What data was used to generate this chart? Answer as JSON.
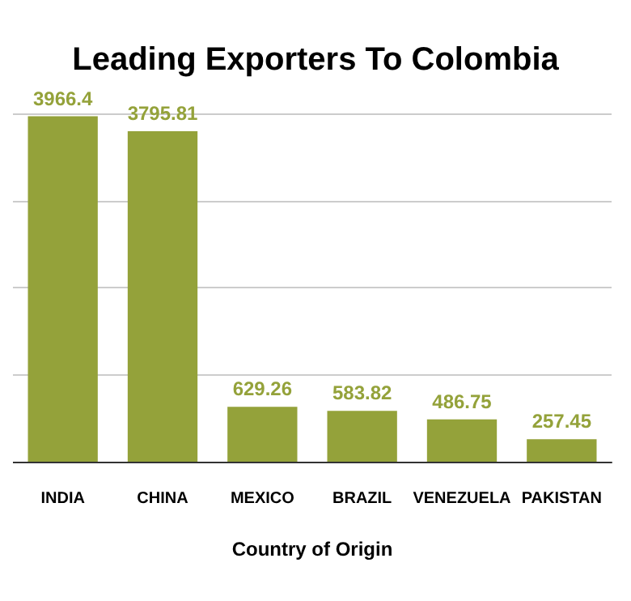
{
  "chart_data": {
    "type": "bar",
    "title": "Leading Exporters To Colombia",
    "xlabel": "Country of Origin",
    "categories": [
      "INDIA",
      "CHINA",
      "MEXICO",
      "BRAZIL",
      "VENEZUELA",
      "PAKISTAN"
    ],
    "values": [
      3966.4,
      3795.81,
      629.26,
      583.82,
      486.75,
      257.45
    ],
    "color": "#94a23a",
    "data_labels": true,
    "grid": "y",
    "ylim": [
      0,
      4000
    ],
    "yticks": [
      {
        "value": 0,
        "label": null
      },
      {
        "value": 1000,
        "label": null
      },
      {
        "value": 2000,
        "label": null
      },
      {
        "value": 3000,
        "label": null
      },
      {
        "value": 4000,
        "label": null
      }
    ],
    "tick_labels": "x"
  }
}
